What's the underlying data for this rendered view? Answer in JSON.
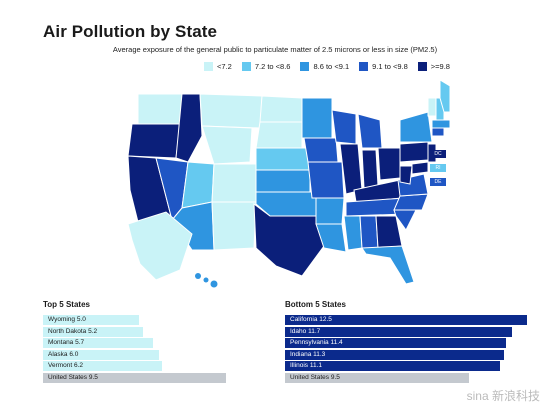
{
  "page": {
    "title": "Air Pollution by State",
    "subtitle": "Average exposure of the general public to particulate matter of 2.5 microns or less in size (PM2.5)"
  },
  "legend": {
    "items": [
      {
        "label": "<7.2",
        "color": "#c9f3f7"
      },
      {
        "label": "7.2 to <8.6",
        "color": "#65c9f0"
      },
      {
        "label": "8.6 to <9.1",
        "color": "#2f95e0"
      },
      {
        "label": "9.1 to <9.8",
        "color": "#1f56c4"
      },
      {
        "label": ">=9.8",
        "color": "#0b1f7a"
      }
    ]
  },
  "map": {
    "callouts": [
      {
        "label": "DC",
        "color": "#0b1f7a"
      },
      {
        "label": "RI",
        "color": "#65c9f0"
      },
      {
        "label": "DE",
        "color": "#1f56c4"
      }
    ]
  },
  "chart_data": [
    {
      "type": "bar",
      "title": "Top 5 States",
      "categories": [
        "Wyoming",
        "North Dakota",
        "Montana",
        "Alaska",
        "Vermont",
        "United States"
      ],
      "labels": [
        "Wyoming 5.0",
        "North Dakota 5.2",
        "Montana 5.7",
        "Alaska 6.0",
        "Vermont 6.2",
        "United States 9.5"
      ],
      "values": [
        5.0,
        5.2,
        5.7,
        6.0,
        6.2,
        9.5
      ],
      "colors": {
        "state": "#c9f3f7",
        "us": "#c4c9cf"
      }
    },
    {
      "type": "bar",
      "title": "Bottom 5 States",
      "categories": [
        "California",
        "Idaho",
        "Pennsylvania",
        "Indiana",
        "Illinois",
        "United States"
      ],
      "labels": [
        "California 12.5",
        "Idaho 11.7",
        "Pennsylvania 11.4",
        "Indiana 11.3",
        "Illinois 11.1",
        "United States 9.5"
      ],
      "values": [
        12.5,
        11.7,
        11.4,
        11.3,
        11.1,
        9.5
      ],
      "colors": {
        "state": "#0b2a8c",
        "us": "#c4c9cf"
      }
    }
  ],
  "watermark": "sina 新浪科技"
}
